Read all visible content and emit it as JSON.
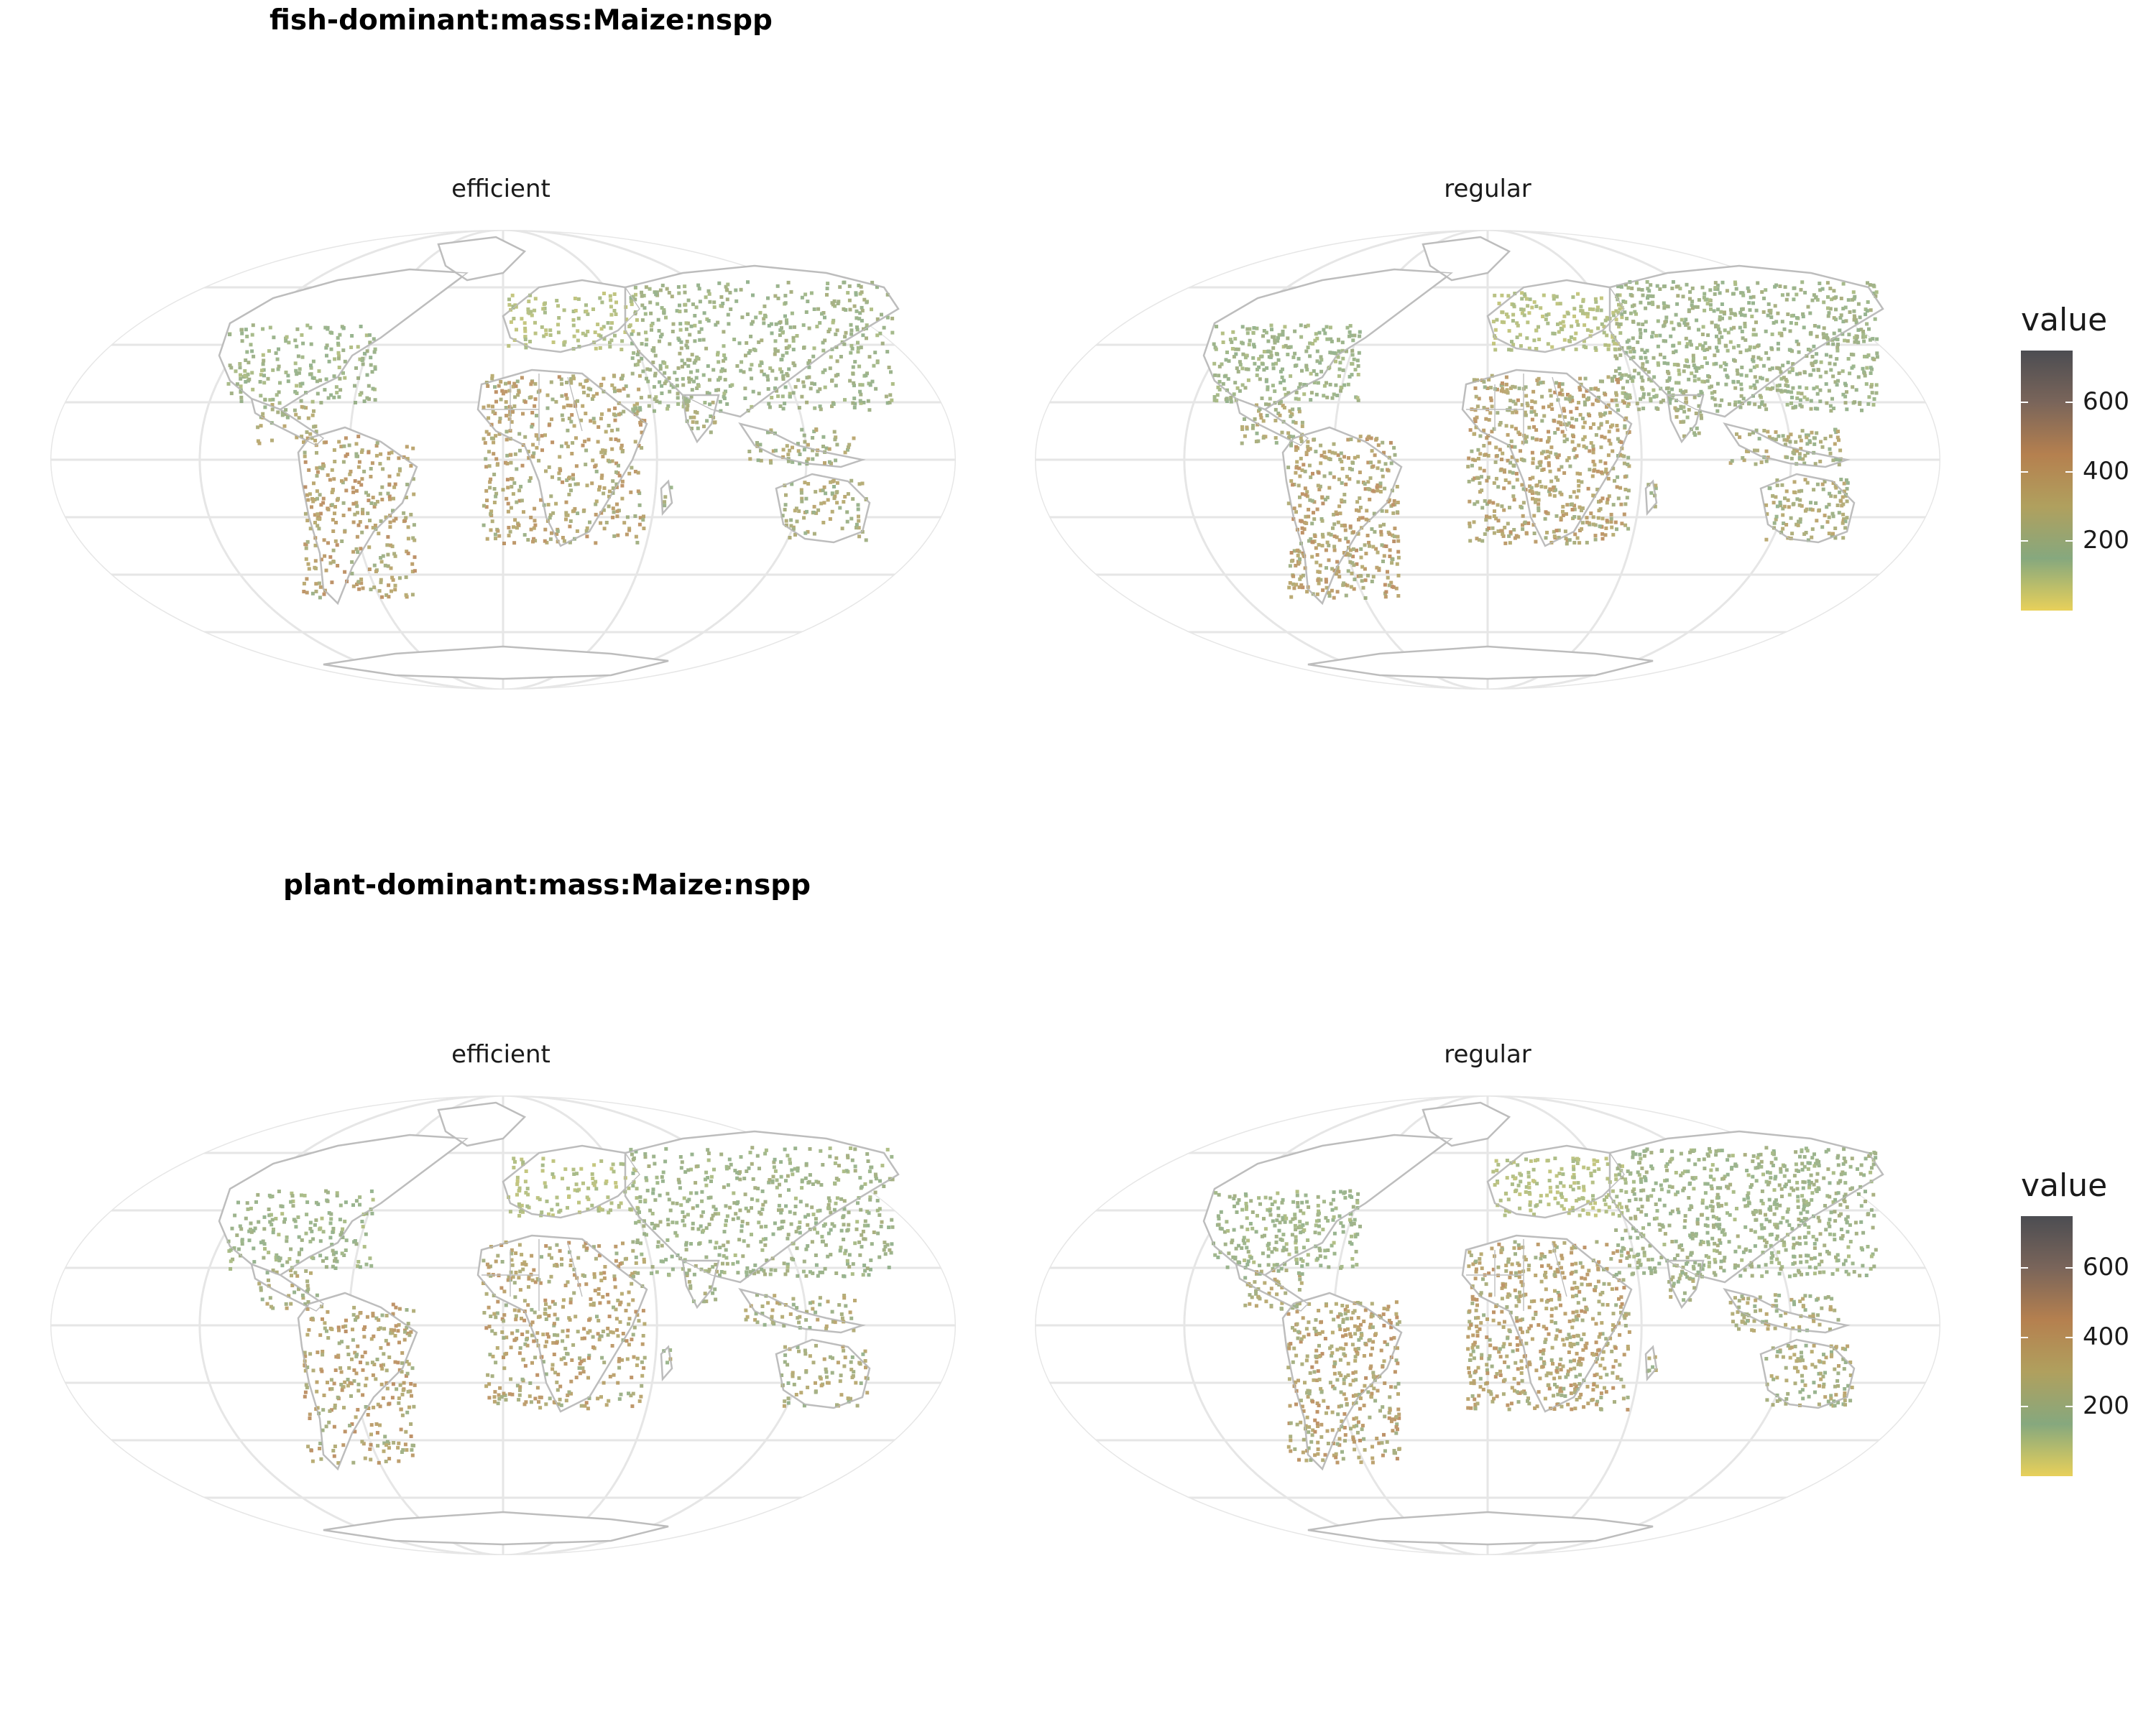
{
  "colorscale": {
    "stops": [
      "#e8d05a",
      "#86a87e",
      "#b0a05e",
      "#b5804f",
      "#7a655a",
      "#4c4d52"
    ],
    "range": [
      0,
      750
    ],
    "ticks": [
      200,
      400,
      600
    ]
  },
  "rows": [
    {
      "title": "fish-dominant:mass:Maize:nspp",
      "legend_title": "value",
      "facets": [
        {
          "label": "efficient",
          "density": 0.45
        },
        {
          "label": "regular",
          "density": 0.62
        }
      ]
    },
    {
      "title": "plant-dominant:mass:Maize:nspp",
      "legend_title": "value",
      "facets": [
        {
          "label": "efficient",
          "density": 0.42
        },
        {
          "label": "regular",
          "density": 0.58
        }
      ]
    }
  ],
  "colors": {
    "graticule": "#e6e6e6",
    "coastline": "#bdbdbd"
  }
}
